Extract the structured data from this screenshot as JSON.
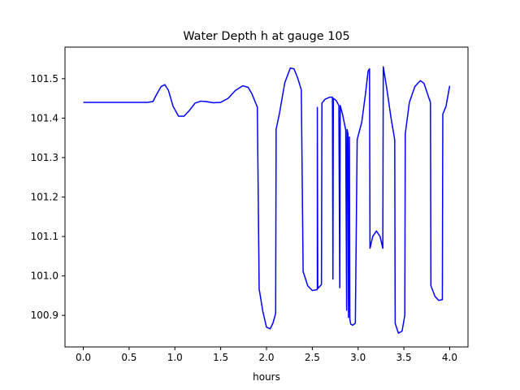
{
  "chart_data": {
    "type": "line",
    "title": "Water Depth h at gauge 105",
    "xlabel": "hours",
    "ylabel": "",
    "xlim": [
      -0.2,
      4.2
    ],
    "ylim": [
      100.82,
      101.58
    ],
    "grid": false,
    "x_ticks": [
      0.0,
      0.5,
      1.0,
      1.5,
      2.0,
      2.5,
      3.0,
      3.5,
      4.0
    ],
    "x_tick_labels": [
      "0.0",
      "0.5",
      "1.0",
      "1.5",
      "2.0",
      "2.5",
      "3.0",
      "3.5",
      "4.0"
    ],
    "y_ticks": [
      100.9,
      101.0,
      101.1,
      101.2,
      101.3,
      101.4,
      101.5
    ],
    "y_tick_labels": [
      "100.9",
      "101.0",
      "101.1",
      "101.2",
      "101.3",
      "101.4",
      "101.5"
    ],
    "series": [
      {
        "color": "#0000ff",
        "x": [
          0.0,
          0.7,
          0.76,
          0.8,
          0.85,
          0.89,
          0.93,
          0.98,
          1.04,
          1.1,
          1.16,
          1.22,
          1.28,
          1.34,
          1.42,
          1.5,
          1.58,
          1.66,
          1.74,
          1.8,
          1.84,
          1.9,
          1.92,
          1.925,
          1.96,
          2.0,
          2.04,
          2.07,
          2.1,
          2.105,
          2.14,
          2.2,
          2.26,
          2.3,
          2.34,
          2.38,
          2.4,
          2.405,
          2.45,
          2.5,
          2.55,
          2.555,
          2.555,
          2.56,
          2.6,
          2.605,
          2.64,
          2.69,
          2.72,
          2.725,
          2.73,
          2.76,
          2.79,
          2.8,
          2.805,
          2.83,
          2.865,
          2.875,
          2.88,
          2.89,
          2.895,
          2.905,
          2.91,
          2.92,
          2.94,
          2.97,
          2.99,
          2.995,
          3.04,
          3.08,
          3.11,
          3.125,
          3.13,
          3.16,
          3.2,
          3.24,
          3.27,
          3.275,
          3.31,
          3.36,
          3.4,
          3.405,
          3.44,
          3.48,
          3.51,
          3.515,
          3.56,
          3.62,
          3.68,
          3.72,
          3.76,
          3.79,
          3.795,
          3.84,
          3.88,
          3.92,
          3.925,
          3.96,
          4.0
        ],
        "y": [
          101.44,
          101.44,
          101.442,
          101.46,
          101.48,
          101.485,
          101.47,
          101.43,
          101.405,
          101.405,
          101.42,
          101.438,
          101.443,
          101.442,
          101.439,
          101.44,
          101.45,
          101.47,
          101.482,
          101.478,
          101.462,
          101.428,
          100.965,
          100.96,
          100.91,
          100.87,
          100.866,
          100.88,
          100.905,
          101.372,
          101.41,
          101.49,
          101.527,
          101.525,
          101.502,
          101.472,
          101.01,
          101.008,
          100.975,
          100.963,
          100.965,
          100.968,
          101.427,
          100.968,
          100.978,
          101.438,
          101.448,
          101.453,
          101.453,
          100.992,
          101.45,
          101.445,
          101.432,
          100.97,
          101.432,
          101.41,
          101.37,
          100.913,
          101.371,
          101.36,
          100.895,
          101.352,
          100.89,
          100.878,
          100.875,
          100.88,
          101.345,
          101.35,
          101.39,
          101.46,
          101.52,
          101.525,
          101.07,
          101.1,
          101.114,
          101.1,
          101.07,
          101.53,
          101.48,
          101.4,
          101.345,
          100.88,
          100.855,
          100.86,
          100.9,
          101.36,
          101.44,
          101.48,
          101.495,
          101.488,
          101.46,
          101.44,
          100.975,
          100.948,
          100.938,
          100.94,
          101.41,
          101.43,
          101.482
        ]
      }
    ]
  }
}
